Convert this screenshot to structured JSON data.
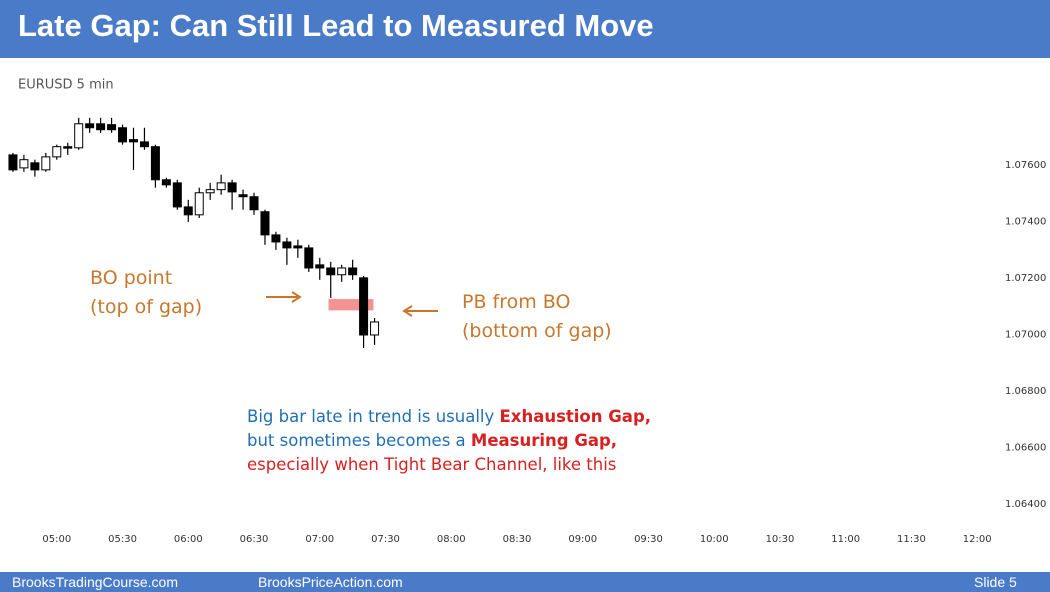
{
  "header": {
    "title": "Late Gap: Can Still Lead to Measured Move"
  },
  "chart_data": {
    "type": "candlestick",
    "subtitle": "EURUSD 5 min",
    "x": [
      0,
      1,
      2,
      3,
      4,
      5,
      6,
      7,
      8,
      9,
      10,
      11,
      12,
      13,
      14,
      15,
      16,
      17,
      18,
      19,
      20,
      21,
      22,
      23,
      24,
      25,
      26,
      27,
      28,
      29,
      30,
      31,
      32,
      33
    ],
    "open": [
      1.07635,
      1.07589,
      1.07607,
      1.07582,
      1.07628,
      1.07664,
      1.0766,
      1.07745,
      1.07745,
      1.07742,
      1.07731,
      1.07689,
      1.07681,
      1.07664,
      1.07547,
      1.07536,
      1.07451,
      1.07423,
      1.07501,
      1.07512,
      1.07536,
      1.07494,
      1.07487,
      1.07434,
      1.07352,
      1.07327,
      1.07313,
      1.07306,
      1.07246,
      1.07235,
      1.07211,
      1.07235,
      1.072,
      1.06998
    ],
    "high": [
      1.07642,
      1.07635,
      1.07618,
      1.07642,
      1.07671,
      1.07678,
      1.07766,
      1.07766,
      1.07766,
      1.07766,
      1.07742,
      1.07731,
      1.07731,
      1.07671,
      1.07554,
      1.07547,
      1.07476,
      1.07519,
      1.07536,
      1.07565,
      1.07547,
      1.07512,
      1.07501,
      1.07441,
      1.07363,
      1.07342,
      1.07335,
      1.07317,
      1.07271,
      1.07257,
      1.07246,
      1.07264,
      1.07207,
      1.07058
    ],
    "low": [
      1.07575,
      1.07575,
      1.07558,
      1.07575,
      1.07618,
      1.07635,
      1.07653,
      1.07713,
      1.07713,
      1.07713,
      1.07671,
      1.07582,
      1.07653,
      1.07519,
      1.07519,
      1.07441,
      1.07398,
      1.07412,
      1.07476,
      1.07494,
      1.07441,
      1.07441,
      1.07423,
      1.07317,
      1.07299,
      1.07246,
      1.07271,
      1.07221,
      1.07193,
      1.07129,
      1.07186,
      1.07193,
      1.06952,
      1.06963
    ],
    "close": [
      1.07582,
      1.07618,
      1.07582,
      1.07628,
      1.07664,
      1.0766,
      1.07745,
      1.07731,
      1.07724,
      1.07724,
      1.07681,
      1.07681,
      1.07664,
      1.07547,
      1.07529,
      1.07451,
      1.07423,
      1.07501,
      1.07512,
      1.07536,
      1.07504,
      1.07487,
      1.07441,
      1.07352,
      1.07327,
      1.07306,
      1.07306,
      1.07235,
      1.07235,
      1.07211,
      1.07235,
      1.07211,
      1.06998,
      1.07044
    ],
    "up_color": "#ffffff",
    "down_color": "#000000",
    "highlight": {
      "x": [
        28.8,
        32.9
      ],
      "y": [
        1.07085,
        1.07125
      ],
      "color": "#f28080"
    },
    "xlim": [
      -1,
      93
    ],
    "xticks": [
      {
        "value": 4,
        "label": "05:00"
      },
      {
        "value": 10,
        "label": "05:30"
      },
      {
        "value": 16,
        "label": "06:00"
      },
      {
        "value": 22,
        "label": "06:30"
      },
      {
        "value": 28,
        "label": "07:00"
      },
      {
        "value": 34,
        "label": "07:30"
      },
      {
        "value": 40,
        "label": "08:00"
      },
      {
        "value": 46,
        "label": "08:30"
      },
      {
        "value": 52,
        "label": "09:00"
      },
      {
        "value": 58,
        "label": "09:30"
      },
      {
        "value": 64,
        "label": "10:00"
      },
      {
        "value": 70,
        "label": "10:30"
      },
      {
        "value": 76,
        "label": "11:00"
      },
      {
        "value": 82,
        "label": "11:30"
      },
      {
        "value": 88,
        "label": "12:00"
      }
    ],
    "ylim": [
      1.0634,
      1.0796
    ],
    "yticks": [
      {
        "value": 1.064,
        "label": "1.06400"
      },
      {
        "value": 1.066,
        "label": "1.06600"
      },
      {
        "value": 1.068,
        "label": "1.06800"
      },
      {
        "value": 1.07,
        "label": "1.07000"
      },
      {
        "value": 1.072,
        "label": "1.07200"
      },
      {
        "value": 1.074,
        "label": "1.07400"
      },
      {
        "value": 1.076,
        "label": "1.07600"
      }
    ]
  },
  "annotations": {
    "bo_point": [
      "BO point",
      "(top of gap)"
    ],
    "pb": [
      "PB from BO",
      "(bottom of gap)"
    ],
    "note": [
      [
        "Big bar late in trend is usually ",
        "Exhaustion Gap,"
      ],
      [
        "but sometimes becomes a ",
        "Measuring Gap,"
      ],
      [
        "especially when Tight Bear Channel, like this"
      ]
    ]
  },
  "footer": {
    "left": "BrooksTradingCourse.com",
    "center": "BrooksPriceAction.com",
    "right": "Slide 5"
  }
}
